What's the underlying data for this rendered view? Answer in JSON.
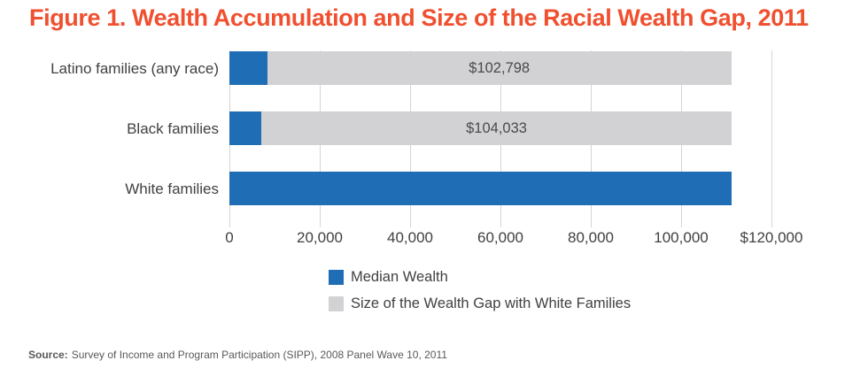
{
  "title": "Figure 1. Wealth Accumulation and Size of the Racial Wealth Gap, 2011",
  "colors": {
    "title": "#f0502f",
    "median_wealth": "#1f6eb5",
    "wealth_gap": "#d2d2d4",
    "gridline": "#d4d4d6",
    "text": "#414042",
    "source_text": "#59595b"
  },
  "chart_data": {
    "type": "bar",
    "orientation": "horizontal",
    "stacked": true,
    "title": "Figure 1. Wealth Accumulation and Size of the Racial Wealth Gap, 2011",
    "categories": [
      "Latino families (any race)",
      "Black families",
      "White families"
    ],
    "series": [
      {
        "name": "Median Wealth",
        "color": "#1f6eb5",
        "values": [
          8348,
          7113,
          111146
        ]
      },
      {
        "name": "Size of the Wealth Gap with White Families",
        "color": "#d2d2d4",
        "values": [
          102798,
          104033,
          0
        ]
      }
    ],
    "segment_labels": [
      "$102,798",
      "$104,033",
      ""
    ],
    "xlim": [
      0,
      120000
    ],
    "xticks": [
      0,
      20000,
      40000,
      60000,
      80000,
      100000,
      120000
    ],
    "xtick_labels": [
      "0",
      "20,000",
      "40,000",
      "60,000",
      "80,000",
      "100,000",
      "$120,000"
    ],
    "xlabel": "",
    "ylabel": "",
    "grid": true,
    "legend_position": "bottom"
  },
  "legend": {
    "items": [
      {
        "label": "Median Wealth",
        "color": "#1f6eb5"
      },
      {
        "label": "Size of the Wealth Gap with White Families",
        "color": "#d2d2d4"
      }
    ]
  },
  "source": {
    "label": "Source:",
    "text": "Survey of Income and Program Participation (SIPP), 2008 Panel Wave 10, 2011"
  }
}
